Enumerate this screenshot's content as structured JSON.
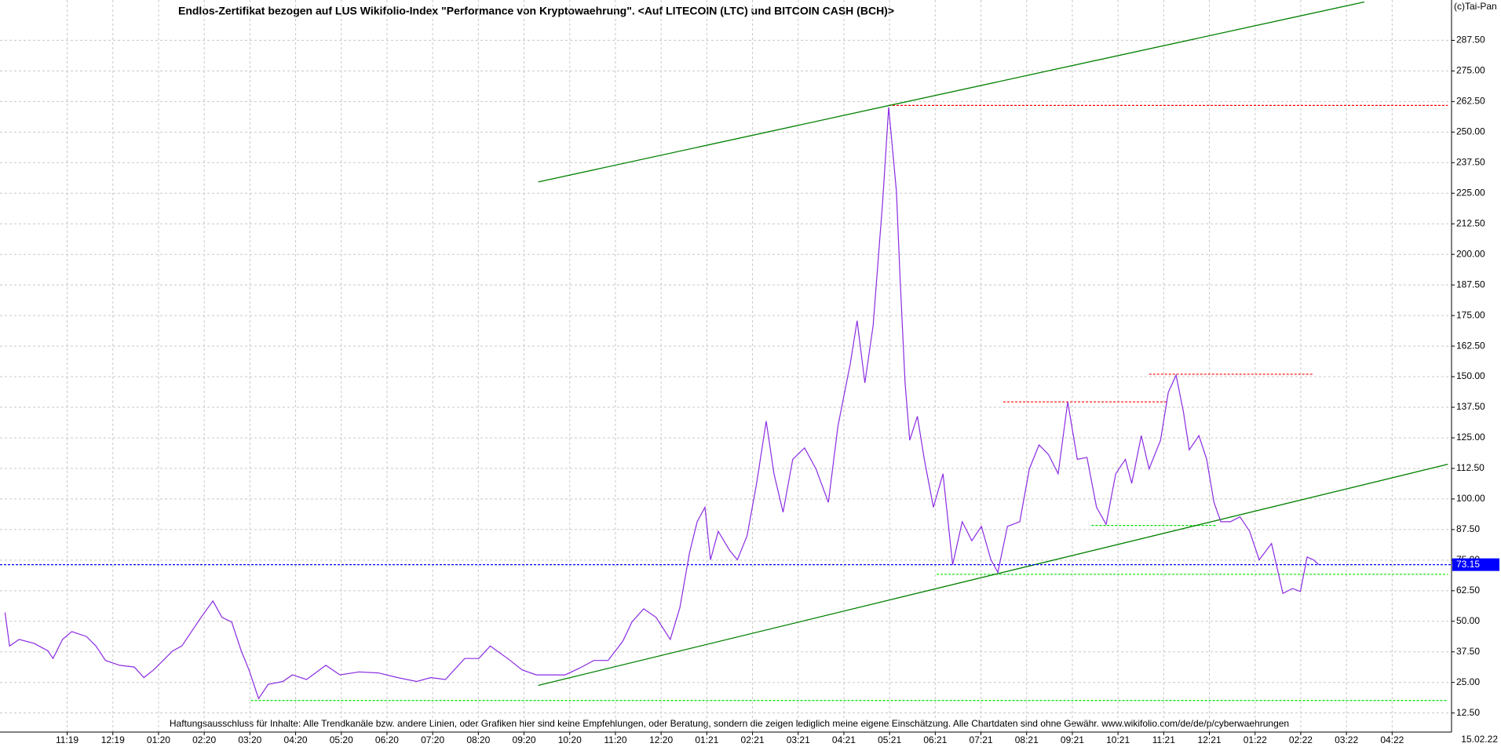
{
  "chart_data": {
    "type": "line",
    "title": "Endlos-Zertifikat bezogen auf LUS Wikifolio-Index \"Performance von Kryptowaehrung\". <Auf LITECOIN (LTC) und BITCOIN CASH (BCH)>",
    "copyright": "(c)Tai-Pan",
    "footer": "Haftungsausschluss für Inhalte: Alle Trendkanäle bzw. andere Linien, oder Grafiken hier sind keine Empfehlungen, oder Beratung, sondern die zeigen lediglich meine eigene Einschätzung. Alle Chartdaten sind ohne Gewähr.  www.wikifolio.com/de/de/p/cyberwaehrungen",
    "date_label": "15.02.22",
    "color": "#8a2be2",
    "x": [
      -1.36,
      -1.26,
      -1.05,
      -0.73,
      -0.42,
      -0.31,
      -0.1,
      0.1,
      0.42,
      0.63,
      0.84,
      1.15,
      1.47,
      1.68,
      1.89,
      2.1,
      2.31,
      2.51,
      2.72,
      2.93,
      3.19,
      3.39,
      3.6,
      3.81,
      3.98,
      4.19,
      4.4,
      4.72,
      4.93,
      5.24,
      5.66,
      5.97,
      6.39,
      6.81,
      7.23,
      7.65,
      7.96,
      8.28,
      8.7,
      9.01,
      9.26,
      9.64,
      9.96,
      10.27,
      10.58,
      10.9,
      11.21,
      11.53,
      11.84,
      12.16,
      12.36,
      12.62,
      12.89,
      13.2,
      13.41,
      13.62,
      13.79,
      13.96,
      14.08,
      14.25,
      14.5,
      14.67,
      14.88,
      15.09,
      15.3,
      15.47,
      15.67,
      15.88,
      16.14,
      16.39,
      16.66,
      16.87,
      17.14,
      17.29,
      17.46,
      17.64,
      17.85,
      17.98,
      18.15,
      18.23,
      18.34,
      18.44,
      18.61,
      18.76,
      18.96,
      19.17,
      19.38,
      19.59,
      19.8,
      20.01,
      20.22,
      20.37,
      20.58,
      20.85,
      21.06,
      21.27,
      21.48,
      21.69,
      21.9,
      22.11,
      22.32,
      22.53,
      22.74,
      22.95,
      23.16,
      23.3,
      23.51,
      23.68,
      23.93,
      24.1,
      24.27,
      24.43,
      24.56,
      24.77,
      24.94,
      25.1,
      25.25,
      25.46,
      25.67,
      25.88,
      26.09,
      26.36,
      26.61,
      26.82,
      26.99,
      27.14,
      27.28,
      27.39
    ],
    "values": [
      53.6,
      39.9,
      42.6,
      41,
      37.9,
      34.8,
      42.6,
      45.8,
      43.8,
      39.9,
      34,
      32,
      31.3,
      27,
      30.1,
      34,
      37.9,
      39.9,
      45.8,
      51.6,
      58.3,
      51.6,
      49.7,
      37.9,
      30.1,
      18.4,
      24.2,
      25.4,
      28.1,
      26.2,
      32,
      28.1,
      29.3,
      28.9,
      27,
      25.4,
      27,
      26.2,
      34.8,
      34.8,
      39.9,
      34.8,
      30.1,
      28.1,
      28.1,
      28.1,
      30.8,
      34,
      34,
      41.8,
      49.7,
      55.1,
      51.6,
      42.6,
      55.5,
      77.8,
      90.7,
      96.6,
      75.1,
      86.8,
      79,
      75.1,
      84.9,
      106.4,
      131.8,
      110.3,
      94.6,
      116.2,
      120.9,
      112.3,
      98.6,
      129.8,
      155.3,
      172.9,
      147.5,
      170.9,
      221.8,
      260.1,
      225.7,
      190.5,
      147.5,
      124,
      133.8,
      116.2,
      96.6,
      110.3,
      73.1,
      90.7,
      82.9,
      88.8,
      75.1,
      70,
      88.8,
      90.7,
      112.3,
      122.1,
      118.1,
      110.3,
      139.7,
      116.2,
      117,
      96.6,
      89.6,
      110.3,
      116.2,
      106.4,
      125.9,
      112.3,
      124,
      143.6,
      150.6,
      135.7,
      120.1,
      125.9,
      116.2,
      98.6,
      90.7,
      90.7,
      92.7,
      86.8,
      75.1,
      81.8,
      61.4,
      63.4,
      62.2,
      76.3,
      75.1,
      73.15
    ],
    "last_price": 73.15,
    "xlim": [
      -1.47,
      30.3
    ],
    "ylim": [
      4.7,
      304
    ],
    "xticks": [
      {
        "value": 0,
        "label": "11:19"
      },
      {
        "value": 1,
        "label": "12:19"
      },
      {
        "value": 2,
        "label": "01:20"
      },
      {
        "value": 3,
        "label": "02:20"
      },
      {
        "value": 4,
        "label": "03:20"
      },
      {
        "value": 5,
        "label": "04:20"
      },
      {
        "value": 6,
        "label": "05:20"
      },
      {
        "value": 7,
        "label": "06:20"
      },
      {
        "value": 8,
        "label": "07:20"
      },
      {
        "value": 9,
        "label": "08:20"
      },
      {
        "value": 10,
        "label": "09:20"
      },
      {
        "value": 11,
        "label": "10:20"
      },
      {
        "value": 12,
        "label": "11:20"
      },
      {
        "value": 13,
        "label": "12:20"
      },
      {
        "value": 14,
        "label": "01:21"
      },
      {
        "value": 15,
        "label": "02:21"
      },
      {
        "value": 16,
        "label": "03:21"
      },
      {
        "value": 17,
        "label": "04:21"
      },
      {
        "value": 18,
        "label": "05:21"
      },
      {
        "value": 19,
        "label": "06:21"
      },
      {
        "value": 20,
        "label": "07:21"
      },
      {
        "value": 21,
        "label": "08:21"
      },
      {
        "value": 22,
        "label": "09:21"
      },
      {
        "value": 23,
        "label": "10:21"
      },
      {
        "value": 24,
        "label": "11:21"
      },
      {
        "value": 25,
        "label": "12:21"
      },
      {
        "value": 26,
        "label": "01:22"
      },
      {
        "value": 27,
        "label": "02:22"
      },
      {
        "value": 28,
        "label": "03:22"
      },
      {
        "value": 29,
        "label": "04:22"
      }
    ],
    "yticks": [
      {
        "value": 12.5,
        "label": "12.50"
      },
      {
        "value": 25,
        "label": "25.00"
      },
      {
        "value": 37.5,
        "label": "37.50"
      },
      {
        "value": 50,
        "label": "50.00"
      },
      {
        "value": 62.5,
        "label": "62.50"
      },
      {
        "value": 75,
        "label": "75.00"
      },
      {
        "value": 87.5,
        "label": "87.50"
      },
      {
        "value": 100,
        "label": "100.00"
      },
      {
        "value": 112.5,
        "label": "112.50"
      },
      {
        "value": 125,
        "label": "125.00"
      },
      {
        "value": 137.5,
        "label": "137.50"
      },
      {
        "value": 150,
        "label": "150.00"
      },
      {
        "value": 162.5,
        "label": "162.50"
      },
      {
        "value": 175,
        "label": "175.00"
      },
      {
        "value": 187.5,
        "label": "187.50"
      },
      {
        "value": 200,
        "label": "200.00"
      },
      {
        "value": 212.5,
        "label": "212.50"
      },
      {
        "value": 225,
        "label": "225.00"
      },
      {
        "value": 237.5,
        "label": "237.50"
      },
      {
        "value": 250,
        "label": "250.00"
      },
      {
        "value": 262.5,
        "label": "262.50"
      },
      {
        "value": 275,
        "label": "275.00"
      },
      {
        "value": 287.5,
        "label": "287.50"
      }
    ],
    "grid": true,
    "trendlines": [
      {
        "x": [
          10.31,
          28.39
        ],
        "y": [
          229.6,
          303.2
        ],
        "color": "#008000"
      },
      {
        "x": [
          10.31,
          30.22
        ],
        "y": [
          23.8,
          114.2
        ],
        "color": "#008000"
      }
    ],
    "levels": [
      {
        "y": 260.9,
        "x": [
          17.98,
          30.22
        ],
        "color": "#ff0000"
      },
      {
        "y": 139.7,
        "x": [
          20.49,
          24.1
        ],
        "color": "#ff0000"
      },
      {
        "y": 151,
        "x": [
          23.68,
          27.28
        ],
        "color": "#ff0000"
      },
      {
        "y": 17.6,
        "x": [
          4.02,
          30.22
        ],
        "color": "#00e000"
      },
      {
        "y": 69.2,
        "x": [
          19.03,
          30.22
        ],
        "color": "#00e000"
      },
      {
        "y": 89.2,
        "x": [
          22.42,
          25.15
        ],
        "color": "#00e000"
      }
    ],
    "last_price_color": "#0000ff"
  }
}
